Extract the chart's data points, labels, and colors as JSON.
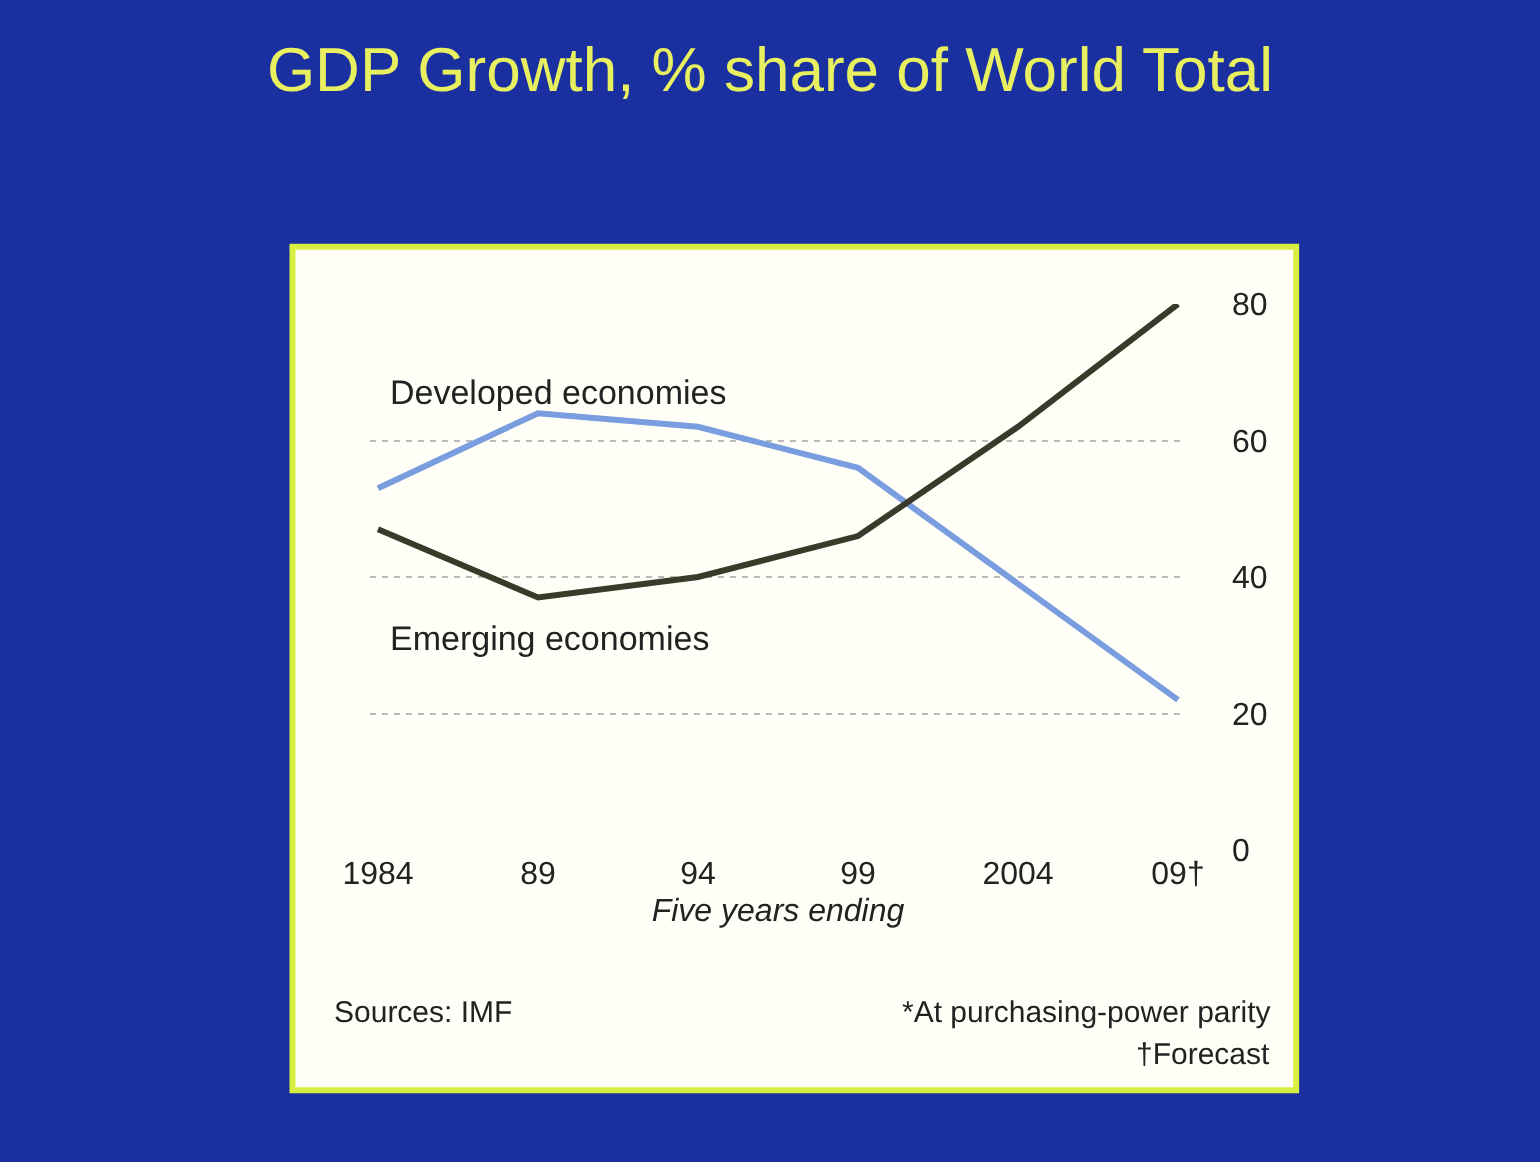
{
  "chart_data": {
    "type": "line",
    "title": "GDP Growth, % share of World Total",
    "xlabel": "Five years ending",
    "categories": [
      "1984",
      "89",
      "94",
      "99",
      "2004",
      "09†"
    ],
    "series": [
      {
        "name": "Developed economies",
        "color": "#7a9de0",
        "values": [
          53,
          64,
          62,
          56,
          39,
          22
        ]
      },
      {
        "name": "Emerging economies",
        "color": "#3a3a2a",
        "values": [
          47,
          37,
          40,
          46,
          62,
          80
        ]
      }
    ],
    "ylim": [
      0,
      80
    ],
    "yticks": [
      0,
      20,
      40,
      60,
      80
    ],
    "grid": "y",
    "legend": false,
    "annotations": [
      "Sources: IMF",
      "*At purchasing-power parity",
      "†Forecast"
    ]
  }
}
